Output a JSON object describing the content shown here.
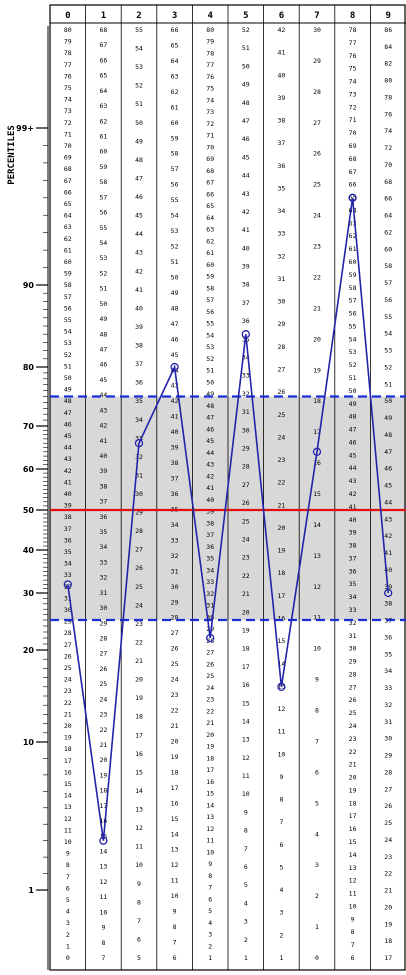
{
  "chart_data": {
    "type": "line",
    "ylabel": "PERCENTILES",
    "y_tick_labels": [
      "99+",
      "90",
      "80",
      "70",
      "60",
      "50",
      "40",
      "30",
      "20",
      "10",
      "1"
    ],
    "y_ticks": [
      99,
      90,
      80,
      70,
      60,
      50,
      40,
      30,
      20,
      10,
      1
    ],
    "columns": [
      "0",
      "1",
      "2",
      "3",
      "4",
      "5",
      "6",
      "7",
      "8",
      "9"
    ],
    "table": [
      [
        "80",
        "79",
        "78",
        "77",
        "76",
        "75",
        "74",
        "73",
        "72",
        "71",
        "70",
        "69",
        "68",
        "67",
        "66",
        "65",
        "64",
        "63",
        "62",
        "61",
        "60",
        "59",
        "58",
        "57",
        "56",
        "55",
        "54",
        "53",
        "52",
        "51",
        "50",
        "49",
        "48",
        "47",
        "46",
        "45",
        "44",
        "43",
        "42",
        "41",
        "40",
        "39",
        "38",
        "37",
        "36",
        "35",
        "34",
        "33",
        "32",
        "31",
        "30",
        "29",
        "28",
        "27",
        "26",
        "25",
        "24",
        "23",
        "22",
        "21",
        "20",
        "19",
        "18",
        "17",
        "16",
        "15",
        "14",
        "13",
        "12",
        "11",
        "10",
        "9",
        "8",
        "7",
        "6",
        "5",
        "4",
        "3",
        "2",
        "1",
        "0"
      ],
      [
        "68",
        "67",
        "66",
        "65",
        "64",
        "63",
        "62",
        "61",
        "60",
        "59",
        "58",
        "57",
        "56",
        "55",
        "54",
        "53",
        "52",
        "51",
        "50",
        "49",
        "48",
        "47",
        "46",
        "45",
        "44",
        "43",
        "42",
        "41",
        "40",
        "39",
        "38",
        "37",
        "36",
        "35",
        "34",
        "33",
        "32",
        "31",
        "30",
        "29",
        "28",
        "27",
        "26",
        "25",
        "24",
        "23",
        "22",
        "21",
        "20",
        "19",
        "18",
        "17",
        "16",
        "15",
        "14",
        "13",
        "12",
        "11",
        "10",
        "9",
        "8",
        "7"
      ],
      [
        "55",
        "54",
        "53",
        "52",
        "51",
        "50",
        "49",
        "48",
        "47",
        "46",
        "45",
        "44",
        "43",
        "42",
        "41",
        "40",
        "39",
        "38",
        "37",
        "36",
        "35",
        "34",
        "33",
        "32",
        "31",
        "30",
        "29",
        "28",
        "27",
        "26",
        "25",
        "24",
        "23",
        "22",
        "21",
        "20",
        "19",
        "18",
        "17",
        "16",
        "15",
        "14",
        "13",
        "12",
        "11",
        "10",
        "9",
        "8",
        "7",
        "6",
        "5"
      ],
      [
        "66",
        "65",
        "64",
        "63",
        "62",
        "61",
        "60",
        "59",
        "58",
        "57",
        "56",
        "55",
        "54",
        "53",
        "52",
        "51",
        "50",
        "49",
        "48",
        "47",
        "46",
        "45",
        "44",
        "43",
        "42",
        "41",
        "40",
        "39",
        "38",
        "37",
        "36",
        "35",
        "34",
        "33",
        "32",
        "31",
        "30",
        "29",
        "28",
        "27",
        "26",
        "25",
        "24",
        "23",
        "22",
        "21",
        "20",
        "19",
        "18",
        "17",
        "16",
        "15",
        "14",
        "13",
        "12",
        "11",
        "10",
        "9",
        "8",
        "7",
        "6"
      ],
      [
        "80",
        "79",
        "78",
        "77",
        "76",
        "75",
        "74",
        "73",
        "72",
        "71",
        "70",
        "69",
        "68",
        "67",
        "66",
        "65",
        "64",
        "63",
        "62",
        "61",
        "60",
        "59",
        "58",
        "57",
        "56",
        "55",
        "54",
        "53",
        "52",
        "51",
        "50",
        "49",
        "48",
        "47",
        "46",
        "45",
        "44",
        "43",
        "42",
        "41",
        "40",
        "39",
        "38",
        "37",
        "36",
        "35",
        "34",
        "33",
        "32",
        "31",
        "30",
        "29",
        "28",
        "27",
        "26",
        "25",
        "24",
        "23",
        "22",
        "21",
        "20",
        "19",
        "18",
        "17",
        "16",
        "15",
        "14",
        "13",
        "12",
        "11",
        "10",
        "9",
        "8",
        "7",
        "6",
        "5",
        "4",
        "3",
        "2",
        "1"
      ],
      [
        "52",
        "51",
        "50",
        "49",
        "48",
        "47",
        "46",
        "45",
        "44",
        "43",
        "42",
        "41",
        "40",
        "39",
        "38",
        "37",
        "36",
        "35",
        "34",
        "33",
        "32",
        "31",
        "30",
        "29",
        "28",
        "27",
        "26",
        "25",
        "24",
        "23",
        "22",
        "21",
        "20",
        "19",
        "18",
        "17",
        "16",
        "15",
        "14",
        "13",
        "12",
        "11",
        "10",
        "9",
        "8",
        "7",
        "6",
        "5",
        "4",
        "3",
        "2",
        "1"
      ],
      [
        "42",
        "41",
        "40",
        "39",
        "38",
        "37",
        "36",
        "35",
        "34",
        "33",
        "32",
        "31",
        "30",
        "29",
        "28",
        "27",
        "26",
        "25",
        "24",
        "23",
        "22",
        "21",
        "20",
        "19",
        "18",
        "17",
        "16",
        "15",
        "14",
        "13",
        "12",
        "11",
        "10",
        "9",
        "8",
        "7",
        "6",
        "5",
        "4",
        "3",
        "2",
        "1"
      ],
      [
        "30",
        "29",
        "28",
        "27",
        "26",
        "25",
        "24",
        "23",
        "22",
        "21",
        "20",
        "19",
        "18",
        "17",
        "16",
        "15",
        "14",
        "13",
        "12",
        "11",
        "10",
        "9",
        "8",
        "7",
        "6",
        "5",
        "4",
        "3",
        "2",
        "1",
        "0"
      ],
      [
        "78",
        "77",
        "76",
        "75",
        "74",
        "73",
        "72",
        "71",
        "70",
        "69",
        "68",
        "67",
        "66",
        "65",
        "64",
        "63",
        "62",
        "61",
        "60",
        "59",
        "58",
        "57",
        "56",
        "55",
        "54",
        "53",
        "52",
        "51",
        "50",
        "49",
        "48",
        "47",
        "46",
        "45",
        "44",
        "43",
        "42",
        "41",
        "40",
        "39",
        "38",
        "37",
        "36",
        "35",
        "34",
        "33",
        "32",
        "31",
        "30",
        "29",
        "28",
        "27",
        "26",
        "25",
        "24",
        "23",
        "22",
        "21",
        "20",
        "19",
        "18",
        "17",
        "16",
        "15",
        "14",
        "13",
        "12",
        "11",
        "10",
        "9",
        "8",
        "7",
        "6"
      ],
      [
        "86",
        "84",
        "82",
        "80",
        "78",
        "76",
        "74",
        "72",
        "70",
        "68",
        "66",
        "64",
        "62",
        "60",
        "58",
        "57",
        "56",
        "55",
        "54",
        "53",
        "52",
        "51",
        "50",
        "49",
        "48",
        "47",
        "46",
        "45",
        "44",
        "43",
        "42",
        "41",
        "40",
        "39",
        "38",
        "37",
        "36",
        "35",
        "34",
        "33",
        "32",
        "31",
        "30",
        "29",
        "28",
        "27",
        "26",
        "25",
        "24",
        "23",
        "22",
        "21",
        "20",
        "19",
        "18",
        "17"
      ]
    ],
    "series": [
      {
        "x": [
          "0",
          "1",
          "2",
          "3",
          "4",
          "5",
          "6",
          "7",
          "8",
          "9"
        ],
        "values": [
          32,
          4,
          66,
          80,
          22,
          84,
          16,
          64,
          95,
          30
        ]
      }
    ],
    "band": [
      25,
      75
    ],
    "median": 50,
    "ylim": [
      1,
      99
    ],
    "colors": {
      "line": "#2222aa",
      "band": "#d8d8d8",
      "band_edge": "#1a2fd6",
      "median": "#dd1111",
      "grid": "#000000"
    },
    "grid": true
  }
}
